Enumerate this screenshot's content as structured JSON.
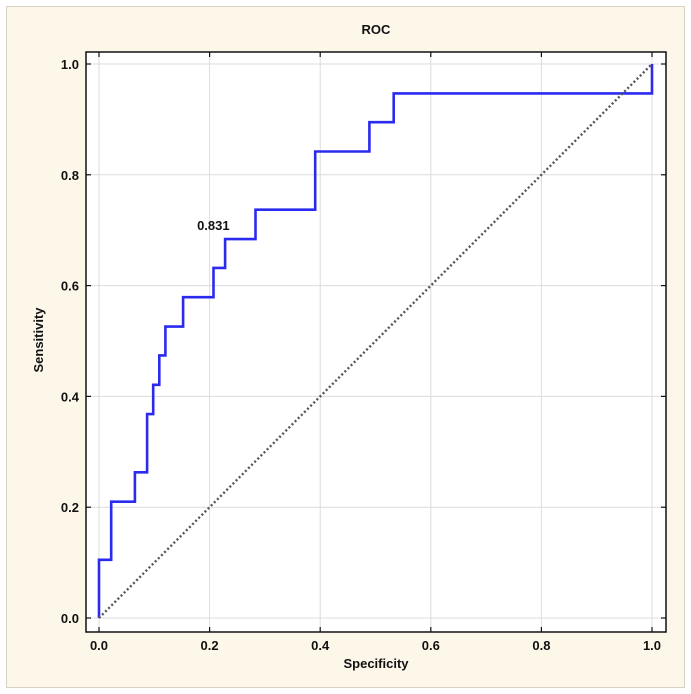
{
  "chart_data": {
    "type": "line",
    "title": "ROC",
    "xlabel": "Specificity",
    "ylabel": "Sensitivity",
    "xlim": [
      0,
      1
    ],
    "ylim": [
      0,
      1
    ],
    "xticks": [
      "0.0",
      "0.2",
      "0.4",
      "0.6",
      "0.8",
      "1.0"
    ],
    "yticks": [
      "0.0",
      "0.2",
      "0.4",
      "0.6",
      "0.8",
      "1.0"
    ],
    "grid": true,
    "series": [
      {
        "color": "#2b2bf0",
        "points": [
          [
            0.0,
            0.0
          ],
          [
            0.0,
            0.105
          ],
          [
            0.022,
            0.105
          ],
          [
            0.022,
            0.21
          ],
          [
            0.065,
            0.21
          ],
          [
            0.065,
            0.263
          ],
          [
            0.087,
            0.263
          ],
          [
            0.087,
            0.368
          ],
          [
            0.098,
            0.368
          ],
          [
            0.098,
            0.421
          ],
          [
            0.109,
            0.421
          ],
          [
            0.109,
            0.474
          ],
          [
            0.12,
            0.474
          ],
          [
            0.12,
            0.526
          ],
          [
            0.152,
            0.526
          ],
          [
            0.152,
            0.579
          ],
          [
            0.207,
            0.579
          ],
          [
            0.207,
            0.632
          ],
          [
            0.228,
            0.632
          ],
          [
            0.228,
            0.684
          ],
          [
            0.283,
            0.684
          ],
          [
            0.283,
            0.737
          ],
          [
            0.391,
            0.737
          ],
          [
            0.391,
            0.842
          ],
          [
            0.489,
            0.842
          ],
          [
            0.489,
            0.895
          ],
          [
            0.533,
            0.895
          ],
          [
            0.533,
            0.947
          ],
          [
            1.0,
            0.947
          ],
          [
            1.0,
            1.0
          ]
        ]
      },
      {
        "color": "#555555",
        "style": "dotted",
        "points": [
          [
            0.0,
            0.0
          ],
          [
            1.0,
            1.0
          ]
        ]
      }
    ],
    "annotations": [
      {
        "text": "0.831",
        "x": 0.228,
        "y": 0.684
      }
    ]
  }
}
